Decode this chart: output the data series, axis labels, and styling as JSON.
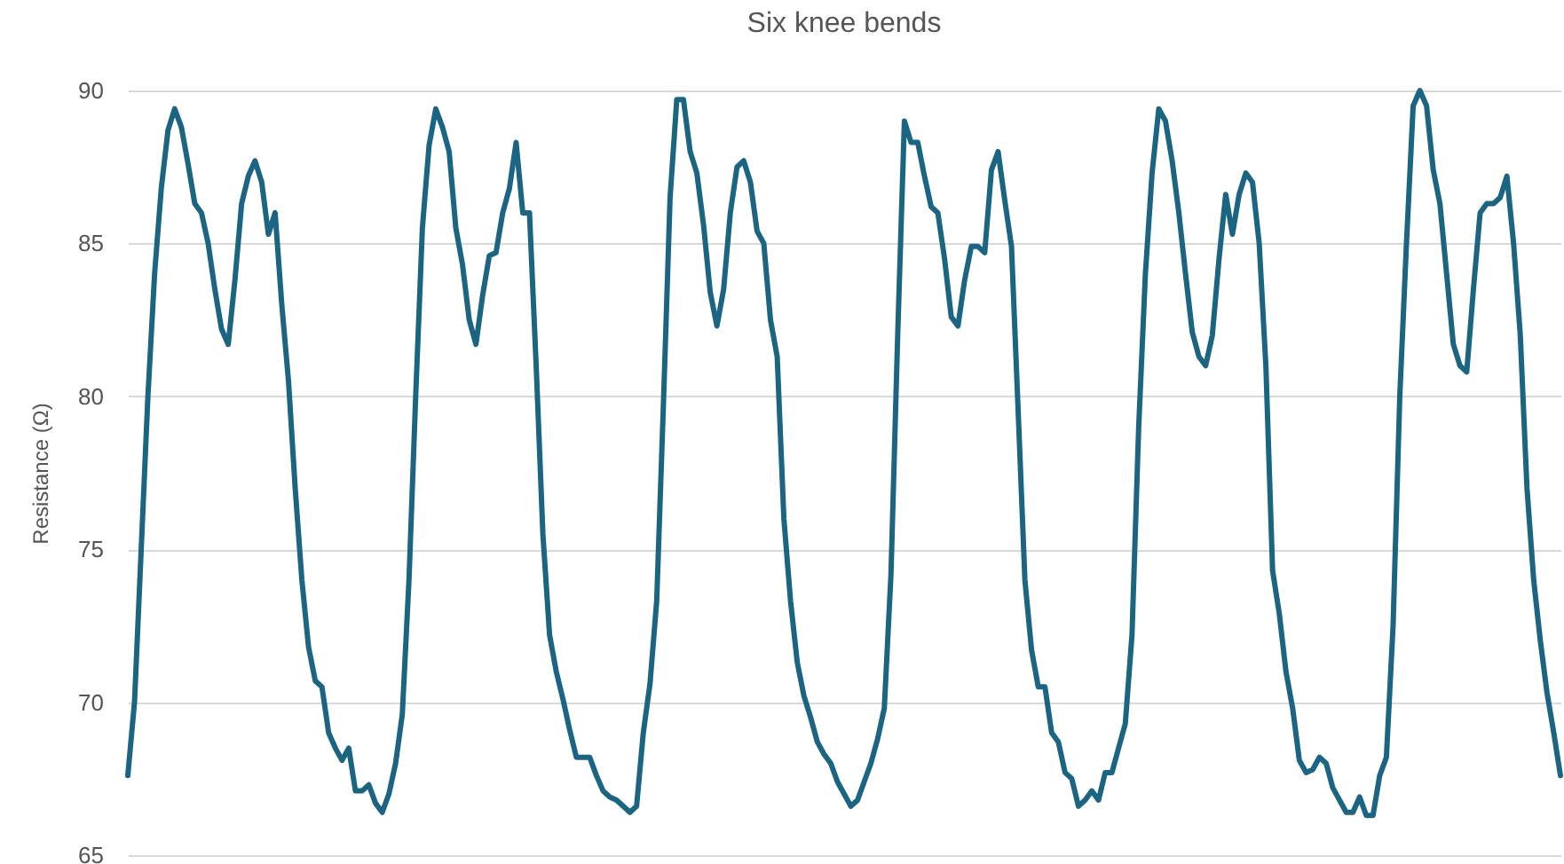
{
  "chart_data": {
    "type": "line",
    "title": "Six knee bends",
    "ylabel": "Resistance (Ω)",
    "ylim": [
      65,
      90
    ],
    "yticks": [
      65,
      70,
      75,
      80,
      85,
      90
    ],
    "grid": "y",
    "marker": "none",
    "line_style": "solid",
    "categories": [
      null,
      null,
      null,
      null,
      null,
      null,
      null,
      null,
      null,
      null,
      null,
      null,
      null,
      null,
      null,
      null,
      null,
      null,
      null,
      null,
      null,
      null,
      null,
      null,
      null,
      null,
      null,
      null,
      null,
      null,
      null,
      null,
      null,
      null,
      null,
      null,
      null,
      null,
      null,
      null,
      null,
      null,
      null,
      null,
      null,
      null,
      null,
      null,
      null,
      null,
      null,
      null,
      null,
      null,
      null,
      null,
      null,
      null,
      null,
      null,
      null,
      null,
      null,
      null,
      null,
      null,
      null,
      null,
      null,
      null,
      null,
      null,
      null,
      null,
      null,
      null,
      null,
      null,
      null,
      null,
      null,
      null,
      null,
      null,
      null,
      null,
      null,
      null,
      null,
      null,
      null,
      null,
      null,
      null,
      null,
      null,
      null,
      null,
      null,
      null,
      null,
      null,
      null,
      null,
      null,
      null,
      null,
      null,
      null,
      null,
      null,
      null,
      null,
      null,
      null,
      null,
      null,
      null,
      null,
      null,
      null,
      null,
      null,
      null,
      null,
      null,
      null,
      null,
      null,
      null,
      null,
      null,
      null,
      null,
      null,
      null,
      null,
      null,
      null,
      null,
      null,
      null,
      null,
      null,
      null,
      null,
      null,
      null,
      null,
      null,
      null,
      null,
      null,
      null,
      null,
      null,
      null,
      null,
      null,
      null,
      null,
      null,
      null,
      null,
      null,
      null,
      null,
      null,
      null,
      null,
      null,
      null,
      null,
      null,
      null,
      null,
      null,
      null,
      null,
      null,
      null,
      null,
      null,
      null,
      null,
      null,
      null,
      null,
      null,
      null,
      null,
      null,
      null,
      null,
      null,
      null,
      null,
      null,
      null,
      null,
      null,
      null,
      null,
      null,
      null,
      null,
      null,
      null,
      null,
      null,
      null,
      null,
      null,
      null,
      null
    ],
    "series": [
      {
        "color": "#1b6482",
        "values": [
          67.6,
          70,
          75,
          80,
          84,
          86.8,
          88.7,
          89.4,
          88.8,
          87.6,
          86.3,
          86,
          85,
          83.5,
          82.2,
          81.7,
          83.8,
          86.3,
          87.2,
          87.7,
          87,
          85.3,
          86,
          83,
          80.5,
          77,
          74,
          71.8,
          70.7,
          70.5,
          69,
          68.5,
          68.1,
          68.5,
          67.1,
          67.1,
          67.3,
          66.7,
          66.4,
          67,
          68,
          69.6,
          74,
          80,
          85.5,
          88.2,
          89.4,
          88.8,
          88,
          85.5,
          84.3,
          82.5,
          81.7,
          83.3,
          84.6,
          84.7,
          86,
          86.8,
          88.3,
          86,
          86,
          81,
          75.5,
          72.2,
          71,
          70.1,
          69.1,
          68.2,
          68.2,
          68.2,
          67.6,
          67.1,
          66.9,
          66.8,
          66.6,
          66.4,
          66.6,
          69,
          70.6,
          73.3,
          79.7,
          86.5,
          89.7,
          89.7,
          88,
          87.3,
          85.6,
          83.4,
          82.3,
          83.5,
          86,
          87.5,
          87.7,
          87,
          85.4,
          85,
          82.5,
          81.3,
          76,
          73.3,
          71.3,
          70.2,
          69.5,
          68.7,
          68.3,
          68,
          67.4,
          67,
          66.6,
          66.8,
          67.4,
          68,
          68.8,
          69.8,
          74.2,
          82,
          89,
          88.3,
          88.3,
          87.2,
          86.2,
          86,
          84.5,
          82.6,
          82.3,
          83.8,
          84.9,
          84.9,
          84.7,
          87.4,
          88,
          86.4,
          84.9,
          79.5,
          74,
          71.7,
          70.5,
          70.5,
          69,
          68.7,
          67.7,
          67.5,
          66.6,
          66.8,
          67.1,
          66.8,
          67.7,
          67.7,
          68.5,
          69.3,
          72.2,
          79,
          84,
          87.3,
          89.4,
          89,
          87.7,
          86,
          84,
          82.1,
          81.3,
          81,
          82,
          84.5,
          86.6,
          85.3,
          86.6,
          87.3,
          87,
          85,
          81,
          74.3,
          72.9,
          71,
          69.8,
          68.1,
          67.7,
          67.8,
          68.2,
          68,
          67.2,
          66.8,
          66.4,
          66.4,
          66.9,
          66.3,
          66.3,
          67.6,
          68.2,
          72.5,
          80,
          85,
          89.5,
          90,
          89.5,
          87.4,
          86.3,
          84,
          81.7,
          81,
          80.8,
          83.5,
          86,
          86.3,
          86.3,
          86.5,
          87.2,
          85,
          82,
          77,
          74,
          72,
          70.3,
          69,
          67.6
        ]
      }
    ]
  }
}
